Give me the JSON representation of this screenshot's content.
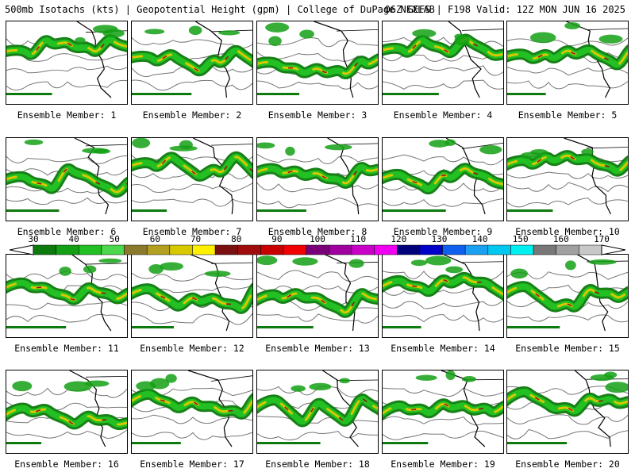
{
  "header": {
    "title": "500mb Isotachs (kts) | Geopotential Height (gpm) | College of DuPage NEXLAB",
    "run": "06Z GEFS | F198 Valid: 12Z MON JUN 16 2025"
  },
  "panels": [
    {
      "label": "Ensemble Member: 1"
    },
    {
      "label": "Ensemble Member: 2"
    },
    {
      "label": "Ensemble Member: 3"
    },
    {
      "label": "Ensemble Member: 4"
    },
    {
      "label": "Ensemble Member: 5"
    },
    {
      "label": "Ensemble Member: 6"
    },
    {
      "label": "Ensemble Member: 7"
    },
    {
      "label": "Ensemble Member: 8"
    },
    {
      "label": "Ensemble Member: 9"
    },
    {
      "label": "Ensemble Member: 10"
    },
    {
      "label": "Ensemble Member: 11"
    },
    {
      "label": "Ensemble Member: 12"
    },
    {
      "label": "Ensemble Member: 13"
    },
    {
      "label": "Ensemble Member: 14"
    },
    {
      "label": "Ensemble Member: 15"
    },
    {
      "label": "Ensemble Member: 16"
    },
    {
      "label": "Ensemble Member: 17"
    },
    {
      "label": "Ensemble Member: 18"
    },
    {
      "label": "Ensemble Member: 19"
    },
    {
      "label": "Ensemble Member: 20"
    }
  ],
  "colorbar": {
    "ticks": [
      "30",
      "40",
      "50",
      "60",
      "70",
      "80",
      "90",
      "100",
      "110",
      "120",
      "130",
      "140",
      "150",
      "160",
      "170"
    ],
    "colors": [
      "#0c7a0c",
      "#14a014",
      "#22c022",
      "#4cd84c",
      "#8c7a2c",
      "#b4a020",
      "#d8c800",
      "#fff000",
      "#7a1010",
      "#a00c0c",
      "#c80000",
      "#f00000",
      "#7a007a",
      "#a000a0",
      "#c800c8",
      "#f000f0",
      "#00007a",
      "#0000c8",
      "#1060f0",
      "#1aa0f0",
      "#00c8f0",
      "#00f0f0",
      "#787878",
      "#a0a0a0",
      "#c8c8c8"
    ]
  }
}
